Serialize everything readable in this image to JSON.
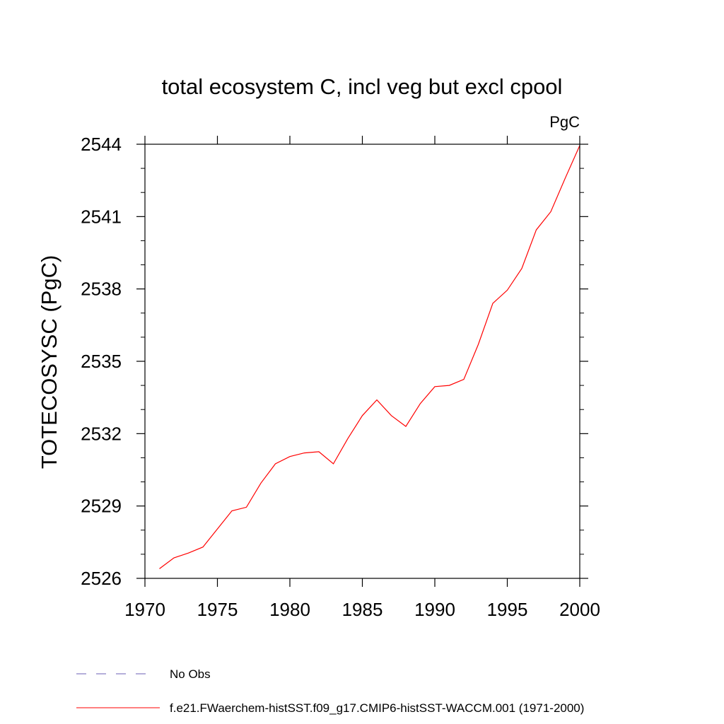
{
  "chart_data": {
    "type": "line",
    "title": "total ecosystem C, incl veg but excl cpool",
    "units": "PgC",
    "ylabel": "TOTECOSYSC  (PgC)",
    "xlabel": "",
    "xlim": [
      1970,
      2000
    ],
    "ylim": [
      2526,
      2544
    ],
    "xticks": [
      1970,
      1975,
      1980,
      1985,
      1990,
      1995,
      2000
    ],
    "xtick_labels": [
      "1970",
      "1975",
      "1980",
      "1985",
      "1990",
      "1995",
      "2000"
    ],
    "yticks": [
      2526,
      2529,
      2532,
      2535,
      2538,
      2541,
      2544
    ],
    "ytick_labels": [
      "2526",
      "2529",
      "2532",
      "2535",
      "2538",
      "2541",
      "2544"
    ],
    "grid": false,
    "legend_position": "bottom",
    "series": [
      {
        "name": "f.e21.FWaerchem-histSST.f09_g17.CMIP6-histSST-WACCM.001 (1971-2000)",
        "color": "#ff0000",
        "style": "solid",
        "x": [
          1971,
          1972,
          1973,
          1974,
          1975,
          1976,
          1977,
          1978,
          1979,
          1980,
          1981,
          1982,
          1983,
          1984,
          1985,
          1986,
          1987,
          1988,
          1989,
          1990,
          1991,
          1992,
          1993,
          1994,
          1995,
          1996,
          1997,
          1998,
          1999,
          2000
        ],
        "y": [
          2526.4,
          2526.85,
          2527.05,
          2527.3,
          2528.05,
          2528.8,
          2528.95,
          2529.95,
          2530.75,
          2531.05,
          2531.2,
          2531.25,
          2530.75,
          2531.8,
          2532.75,
          2533.4,
          2532.75,
          2532.3,
          2533.25,
          2533.95,
          2534.0,
          2534.25,
          2535.7,
          2537.4,
          2537.95,
          2538.85,
          2540.45,
          2541.2,
          2542.6,
          2543.95
        ]
      },
      {
        "name": "No Obs",
        "color": "#6b5fb5",
        "style": "dashed",
        "x": [],
        "y": []
      }
    ]
  }
}
